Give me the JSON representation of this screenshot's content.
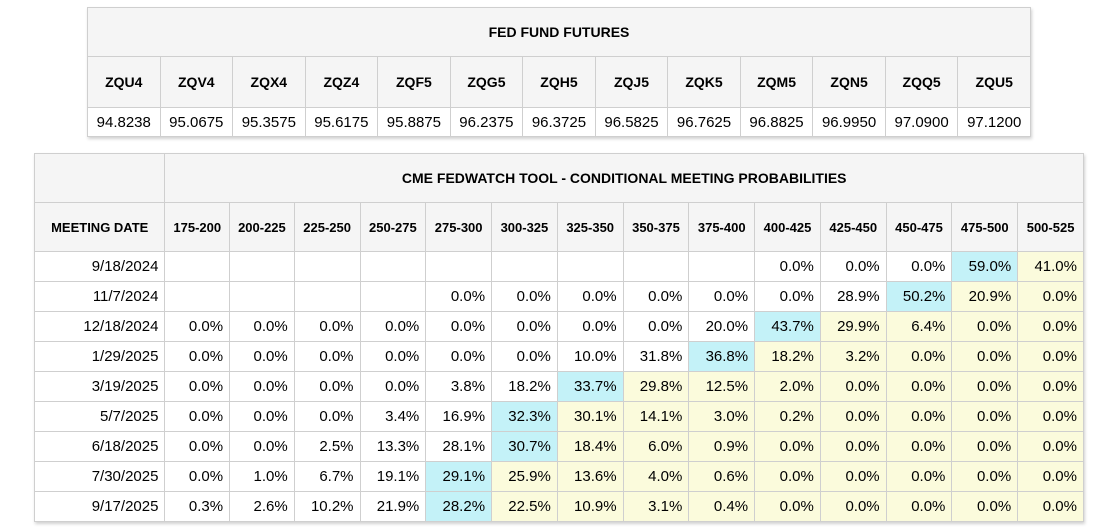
{
  "futures": {
    "title": "FED FUND FUTURES",
    "symbols": [
      "ZQU4",
      "ZQV4",
      "ZQX4",
      "ZQZ4",
      "ZQF5",
      "ZQG5",
      "ZQH5",
      "ZQJ5",
      "ZQK5",
      "ZQM5",
      "ZQN5",
      "ZQQ5",
      "ZQU5"
    ],
    "prices": [
      "94.8238",
      "95.0675",
      "95.3575",
      "95.6175",
      "95.8875",
      "96.2375",
      "96.3725",
      "96.5825",
      "96.7625",
      "96.8825",
      "96.9950",
      "97.0900",
      "97.1200"
    ]
  },
  "fedwatch": {
    "title": "CME FEDWATCH TOOL - CONDITIONAL MEETING PROBABILITIES",
    "date_header": "MEETING DATE",
    "ranges": [
      "175-200",
      "200-225",
      "225-250",
      "250-275",
      "275-300",
      "300-325",
      "325-350",
      "350-375",
      "375-400",
      "400-425",
      "425-450",
      "450-475",
      "475-500",
      "500-525"
    ],
    "colors": {
      "peak": "#c4f2f8",
      "low": "#fbfbdc",
      "blank": "#ffffff"
    },
    "rows": [
      {
        "date": "9/18/2024",
        "values": [
          "",
          "",
          "",
          "",
          "",
          "",
          "",
          "",
          "",
          "0.0%",
          "0.0%",
          "0.0%",
          "59.0%",
          "41.0%"
        ],
        "peak_index": 12,
        "start_index": 12
      },
      {
        "date": "11/7/2024",
        "values": [
          "",
          "",
          "",
          "",
          "0.0%",
          "0.0%",
          "0.0%",
          "0.0%",
          "0.0%",
          "0.0%",
          "28.9%",
          "50.2%",
          "20.9%",
          "0.0%"
        ],
        "peak_index": 11,
        "start_index": 11
      },
      {
        "date": "12/18/2024",
        "values": [
          "0.0%",
          "0.0%",
          "0.0%",
          "0.0%",
          "0.0%",
          "0.0%",
          "0.0%",
          "0.0%",
          "20.0%",
          "43.7%",
          "29.9%",
          "6.4%",
          "0.0%",
          "0.0%"
        ],
        "peak_index": 9,
        "start_index": 9
      },
      {
        "date": "1/29/2025",
        "values": [
          "0.0%",
          "0.0%",
          "0.0%",
          "0.0%",
          "0.0%",
          "0.0%",
          "10.0%",
          "31.8%",
          "36.8%",
          "18.2%",
          "3.2%",
          "0.0%",
          "0.0%",
          "0.0%"
        ],
        "peak_index": 8,
        "start_index": 8
      },
      {
        "date": "3/19/2025",
        "values": [
          "0.0%",
          "0.0%",
          "0.0%",
          "0.0%",
          "3.8%",
          "18.2%",
          "33.7%",
          "29.8%",
          "12.5%",
          "2.0%",
          "0.0%",
          "0.0%",
          "0.0%",
          "0.0%"
        ],
        "peak_index": 6,
        "start_index": 6
      },
      {
        "date": "5/7/2025",
        "values": [
          "0.0%",
          "0.0%",
          "0.0%",
          "3.4%",
          "16.9%",
          "32.3%",
          "30.1%",
          "14.1%",
          "3.0%",
          "0.2%",
          "0.0%",
          "0.0%",
          "0.0%",
          "0.0%"
        ],
        "peak_index": 5,
        "start_index": 5
      },
      {
        "date": "6/18/2025",
        "values": [
          "0.0%",
          "0.0%",
          "2.5%",
          "13.3%",
          "28.1%",
          "30.7%",
          "18.4%",
          "6.0%",
          "0.9%",
          "0.0%",
          "0.0%",
          "0.0%",
          "0.0%",
          "0.0%"
        ],
        "peak_index": 5,
        "start_index": 5
      },
      {
        "date": "7/30/2025",
        "values": [
          "0.0%",
          "1.0%",
          "6.7%",
          "19.1%",
          "29.1%",
          "25.9%",
          "13.6%",
          "4.0%",
          "0.6%",
          "0.0%",
          "0.0%",
          "0.0%",
          "0.0%",
          "0.0%"
        ],
        "peak_index": 4,
        "start_index": 4
      },
      {
        "date": "9/17/2025",
        "values": [
          "0.3%",
          "2.6%",
          "10.2%",
          "21.9%",
          "28.2%",
          "22.5%",
          "10.9%",
          "3.1%",
          "0.4%",
          "0.0%",
          "0.0%",
          "0.0%",
          "0.0%",
          "0.0%"
        ],
        "peak_index": 4,
        "start_index": 4
      }
    ]
  }
}
